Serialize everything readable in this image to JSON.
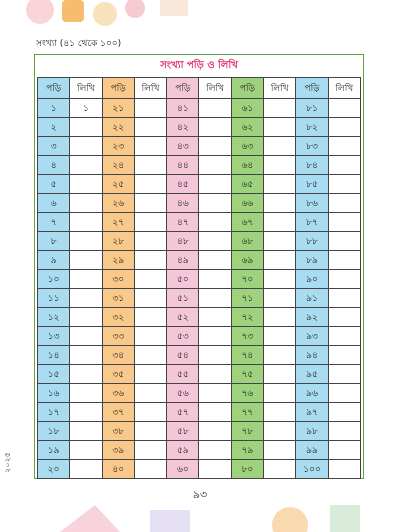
{
  "header": {
    "section": "সংখ্যা (৪১ থেকে ১০০)"
  },
  "table": {
    "title": "সংখ্যা পড়ি ও লিখি",
    "columns": [
      {
        "header": "পড়ি",
        "color": "#a9dcf0",
        "cells": [
          "১",
          "২",
          "৩",
          "৪",
          "৫",
          "৬",
          "৭",
          "৮",
          "৯",
          "১০",
          "১১",
          "১২",
          "১৩",
          "১৪",
          "১৫",
          "১৬",
          "১৭",
          "১৮",
          "১৯",
          "২০"
        ]
      },
      {
        "header": "লিখি",
        "cells": [
          "১"
        ]
      },
      {
        "header": "পড়ি",
        "color": "#f8c98a",
        "cells": [
          "২১",
          "২২",
          "২৩",
          "২৪",
          "২৫",
          "২৬",
          "২৭",
          "২৮",
          "২৯",
          "৩০",
          "৩১",
          "৩২",
          "৩৩",
          "৩৪",
          "৩৫",
          "৩৬",
          "৩৭",
          "৩৮",
          "৩৯",
          "৪০"
        ]
      },
      {
        "header": "লিখি"
      },
      {
        "header": "পড়ি",
        "color": "#f4c7d8",
        "cells": [
          "৪১",
          "৪২",
          "৪৩",
          "৪৪",
          "৪৫",
          "৪৬",
          "৪৭",
          "৪৮",
          "৪৯",
          "৫০",
          "৫১",
          "৫২",
          "৫৩",
          "৫৪",
          "৫৫",
          "৫৬",
          "৫৭",
          "৫৮",
          "৫৯",
          "৬০"
        ]
      },
      {
        "header": "লিখি"
      },
      {
        "header": "পড়ি",
        "color": "#9fd27c",
        "cells": [
          "৬১",
          "৬২",
          "৬৩",
          "৬৪",
          "৬৫",
          "৬৬",
          "৬৭",
          "৬৮",
          "৬৯",
          "৭০",
          "৭১",
          "৭২",
          "৭৩",
          "৭৪",
          "৭৫",
          "৭৬",
          "৭৭",
          "৭৮",
          "৭৯",
          "৮০"
        ]
      },
      {
        "header": "লিখি"
      },
      {
        "header": "পড়ি",
        "color": "#a9dcf0",
        "cells": [
          "৮১",
          "৮২",
          "৮৩",
          "৮৪",
          "৮৫",
          "৮৬",
          "৮৭",
          "৮৮",
          "৮৯",
          "৯০",
          "৯১",
          "৯২",
          "৯৩",
          "৯৪",
          "৯৫",
          "৯৬",
          "৯৭",
          "৯৮",
          "৯৯",
          "১০০"
        ]
      },
      {
        "header": "লিখি"
      }
    ]
  },
  "footer": {
    "page": "৯৩",
    "year": "২০২৫"
  }
}
